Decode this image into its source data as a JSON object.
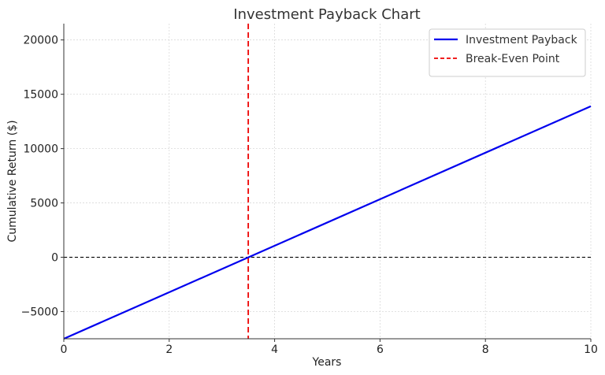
{
  "chart_data": {
    "type": "line",
    "title": "Investment Payback Chart",
    "xlabel": "Years",
    "ylabel": "Cumulative Return ($)",
    "xlim": [
      0,
      10
    ],
    "ylim": [
      -7500,
      21500
    ],
    "x_ticks": [
      0,
      2,
      4,
      6,
      8,
      10
    ],
    "y_ticks": [
      -5000,
      0,
      5000,
      10000,
      15000,
      20000
    ],
    "x_tick_labels": [
      "0",
      "2",
      "4",
      "6",
      "8",
      "10"
    ],
    "y_tick_labels": [
      "−5000",
      "0",
      "5000",
      "10000",
      "15000",
      "20000"
    ],
    "grid": true,
    "legend_position": "top-right",
    "series": [
      {
        "name": "Investment Payback",
        "color": "#0000ee",
        "style": "solid",
        "x": [
          0,
          10
        ],
        "y": [
          -7500,
          13900
        ]
      }
    ],
    "reference_lines": [
      {
        "name": "Break-Even Point",
        "orientation": "vertical",
        "x": 3.5,
        "color": "#ee0000",
        "style": "dashed"
      },
      {
        "name": "",
        "orientation": "horizontal",
        "y": 0,
        "color": "#000000",
        "style": "dashed"
      }
    ]
  }
}
